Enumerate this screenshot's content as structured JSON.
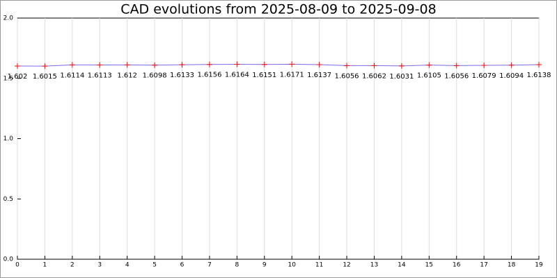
{
  "chart_data": {
    "type": "line",
    "title": "CAD evolutions from 2025-08-09 to 2025-09-08",
    "x": [
      0,
      1,
      2,
      3,
      4,
      5,
      6,
      7,
      8,
      9,
      10,
      11,
      12,
      13,
      14,
      15,
      16,
      17,
      18,
      19
    ],
    "values": [
      1.602,
      1.6015,
      1.6114,
      1.6113,
      1.612,
      1.6098,
      1.6133,
      1.6156,
      1.6164,
      1.6151,
      1.6171,
      1.6137,
      1.6056,
      1.6062,
      1.6031,
      1.6105,
      1.6056,
      1.6079,
      1.6094,
      1.6138
    ],
    "color": "#7b68ee",
    "marker_color": "#ff0000",
    "xlim": [
      0,
      19
    ],
    "xticks": [
      0,
      1,
      2,
      3,
      4,
      5,
      6,
      7,
      8,
      9,
      10,
      11,
      12,
      13,
      14,
      15,
      16,
      17,
      18,
      19
    ],
    "ylim": [
      0,
      2
    ],
    "yticks": [
      {
        "value": 0,
        "label": "0.0"
      },
      {
        "value": 0.5,
        "label": "0.5"
      },
      {
        "value": 1,
        "label": "1.0"
      },
      {
        "value": 1.5,
        "label": "1.5"
      },
      {
        "value": 2,
        "label": "2.0"
      }
    ],
    "grid": true
  }
}
